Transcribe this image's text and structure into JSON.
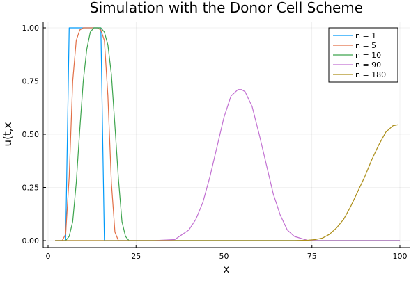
{
  "chart_data": {
    "type": "line",
    "title": "Simulation with the Donor Cell Scheme",
    "xlabel": "x",
    "ylabel": "u(t,x",
    "xlim": [
      0,
      100
    ],
    "ylim": [
      0,
      1
    ],
    "x_ticks": [
      0,
      25,
      50,
      75,
      100
    ],
    "x_tick_labels": [
      "0",
      "25",
      "50",
      "75",
      "100"
    ],
    "y_ticks": [
      0,
      0.25,
      0.5,
      0.75,
      1
    ],
    "y_tick_labels": [
      "0.00",
      "0.25",
      "0.50",
      "0.75",
      "1.00"
    ],
    "grid": true,
    "legend_position": "top-right",
    "series": [
      {
        "name": "n = 1",
        "color": "#009af9",
        "x": [
          2,
          3,
          4,
          5,
          6,
          7,
          8,
          9,
          10,
          11,
          12,
          13,
          14,
          15,
          16,
          17,
          18,
          19,
          20,
          21,
          22,
          23,
          24,
          25,
          30,
          40,
          50,
          60,
          70,
          80,
          90,
          100
        ],
        "y": [
          0,
          0,
          0,
          0,
          1,
          1,
          1,
          1,
          1,
          1,
          1,
          1,
          1,
          1,
          0,
          0,
          0,
          0,
          0,
          0,
          0,
          0,
          0,
          0,
          0,
          0,
          0,
          0,
          0,
          0,
          0,
          0
        ]
      },
      {
        "name": "n = 5",
        "color": "#e26f46",
        "x": [
          2,
          3,
          4,
          5,
          6,
          7,
          8,
          9,
          10,
          11,
          12,
          13,
          14,
          15,
          16,
          17,
          18,
          19,
          20,
          21,
          22,
          23,
          24,
          25,
          30,
          40,
          50,
          60,
          70,
          80,
          90,
          100
        ],
        "y": [
          0,
          0,
          0,
          0.03,
          0.3,
          0.75,
          0.94,
          0.99,
          1,
          1,
          1,
          1,
          1,
          0.99,
          0.94,
          0.68,
          0.27,
          0.04,
          0,
          0,
          0,
          0,
          0,
          0,
          0,
          0,
          0,
          0,
          0,
          0,
          0,
          0
        ]
      },
      {
        "name": "n = 10",
        "color": "#3da44d",
        "x": [
          2,
          3,
          4,
          5,
          6,
          7,
          8,
          9,
          10,
          11,
          12,
          13,
          14,
          15,
          16,
          17,
          18,
          19,
          20,
          21,
          22,
          23,
          24,
          25,
          30,
          40,
          50,
          60,
          70,
          80,
          90,
          100
        ],
        "y": [
          0,
          0,
          0,
          0,
          0.02,
          0.09,
          0.27,
          0.52,
          0.75,
          0.9,
          0.98,
          1,
          1,
          1,
          0.98,
          0.92,
          0.78,
          0.54,
          0.29,
          0.09,
          0.02,
          0,
          0,
          0,
          0,
          0,
          0,
          0,
          0,
          0,
          0,
          0
        ]
      },
      {
        "name": "n = 90",
        "color": "#c271d2",
        "x": [
          2,
          20,
          30,
          36,
          40,
          42,
          44,
          46,
          48,
          50,
          52,
          54,
          55,
          56,
          58,
          60,
          62,
          64,
          66,
          68,
          70,
          74,
          80,
          100
        ],
        "y": [
          0,
          0,
          0,
          0.005,
          0.05,
          0.1,
          0.18,
          0.3,
          0.44,
          0.58,
          0.68,
          0.71,
          0.71,
          0.7,
          0.63,
          0.5,
          0.36,
          0.22,
          0.12,
          0.05,
          0.02,
          0,
          0,
          0
        ]
      },
      {
        "name": "n = 180",
        "color": "#ac8e18",
        "x": [
          2,
          50,
          70,
          74,
          76,
          78,
          80,
          82,
          84,
          86,
          88,
          90,
          92,
          94,
          96,
          98,
          99.5
        ],
        "y": [
          0,
          0,
          0,
          0.002,
          0.005,
          0.012,
          0.03,
          0.06,
          0.1,
          0.16,
          0.23,
          0.3,
          0.38,
          0.45,
          0.51,
          0.54,
          0.545
        ]
      }
    ]
  }
}
